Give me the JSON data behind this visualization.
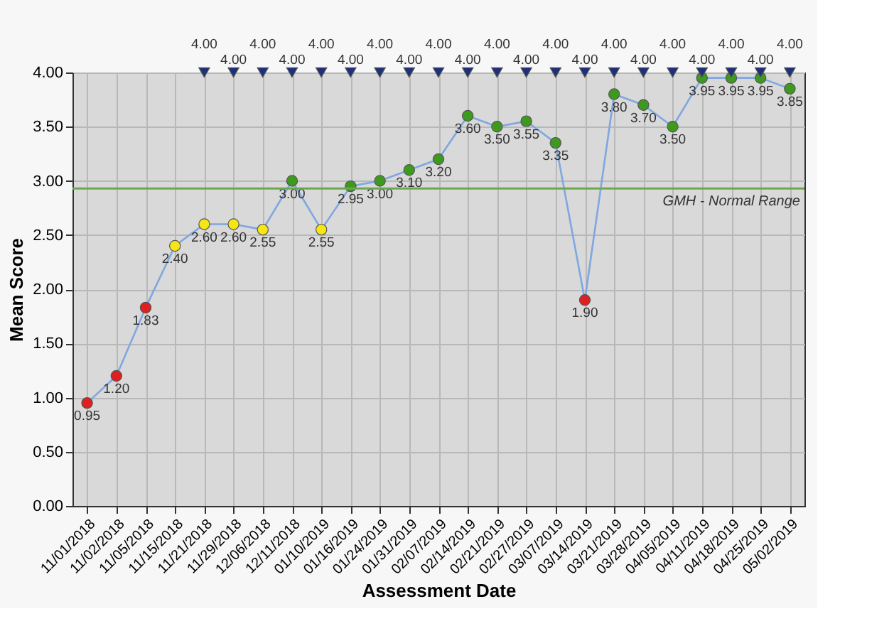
{
  "chart_data": {
    "type": "line",
    "xlabel": "Assessment Date",
    "ylabel": "Mean Score",
    "categories": [
      "11/01/2018",
      "11/02/2018",
      "11/05/2018",
      "11/15/2018",
      "11/21/2018",
      "11/29/2018",
      "12/06/2018",
      "12/11/2018",
      "01/10/2019",
      "01/16/2019",
      "01/24/2019",
      "01/31/2019",
      "02/07/2019",
      "02/14/2019",
      "02/21/2019",
      "02/27/2019",
      "03/07/2019",
      "03/14/2019",
      "03/21/2019",
      "03/28/2019",
      "04/05/2019",
      "04/11/2019",
      "04/18/2019",
      "04/25/2019",
      "05/02/2019"
    ],
    "ylim": [
      0,
      4
    ],
    "yticks": [
      {
        "value": 0,
        "label": "0.00"
      },
      {
        "value": 0.5,
        "label": "0.50"
      },
      {
        "value": 1,
        "label": "1.00"
      },
      {
        "value": 1.5,
        "label": "1.50"
      },
      {
        "value": 2,
        "label": "2.00"
      },
      {
        "value": 2.5,
        "label": "2.50"
      },
      {
        "value": 3,
        "label": "3.00"
      },
      {
        "value": 3.5,
        "label": "3.50"
      },
      {
        "value": 4,
        "label": "4.00"
      }
    ],
    "grid": true,
    "series": [
      {
        "marker": "circle",
        "color": "#7fa7e0",
        "values": [
          0.95,
          1.2,
          1.83,
          2.4,
          2.6,
          2.6,
          2.55,
          3.0,
          2.55,
          2.95,
          3.0,
          3.1,
          3.2,
          3.6,
          3.5,
          3.55,
          3.35,
          1.9,
          3.8,
          3.7,
          3.5,
          3.95,
          3.95,
          3.95,
          3.85
        ],
        "value_labels": [
          "0.95",
          "1.20",
          "1.83",
          "2.40",
          "2.60",
          "2.60",
          "2.55",
          "3.00",
          "2.55",
          "2.95",
          "3.00",
          "3.10",
          "3.20",
          "3.60",
          "3.50",
          "3.55",
          "3.35",
          "1.90",
          "3.80",
          "3.70",
          "3.50",
          "3.95",
          "3.95",
          "3.95",
          "3.85"
        ],
        "colors": [
          "#e02020",
          "#e02020",
          "#e02020",
          "#f5e614",
          "#f5e614",
          "#f5e614",
          "#f5e614",
          "#3e9a1e",
          "#f5e614",
          "#3e9a1e",
          "#3e9a1e",
          "#3e9a1e",
          "#3e9a1e",
          "#3e9a1e",
          "#3e9a1e",
          "#3e9a1e",
          "#3e9a1e",
          "#e02020",
          "#3e9a1e",
          "#3e9a1e",
          "#3e9a1e",
          "#3e9a1e",
          "#3e9a1e",
          "#3e9a1e",
          "#3e9a1e"
        ]
      },
      {
        "type": "scatter",
        "marker": "triangle",
        "color": "#1f2f7a",
        "values": [
          null,
          null,
          null,
          null,
          4.0,
          4.0,
          4.0,
          4.0,
          4.0,
          4.0,
          4.0,
          4.0,
          4.0,
          4.0,
          4.0,
          4.0,
          4.0,
          4.0,
          4.0,
          4.0,
          4.0,
          4.0,
          4.0,
          4.0,
          4.0
        ],
        "value_labels": [
          null,
          null,
          null,
          null,
          "4.00",
          "4.00",
          "4.00",
          "4.00",
          "4.00",
          "4.00",
          "4.00",
          "4.00",
          "4.00",
          "4.00",
          "4.00",
          "4.00",
          "4.00",
          "4.00",
          "4.00",
          "4.00",
          "4.00",
          "4.00",
          "4.00",
          "4.00",
          "4.00"
        ]
      }
    ],
    "ref_lines": [
      {
        "axis": "y",
        "value": 2.93,
        "label": "GMH - Normal Range",
        "color": "#6aa84f"
      }
    ]
  }
}
